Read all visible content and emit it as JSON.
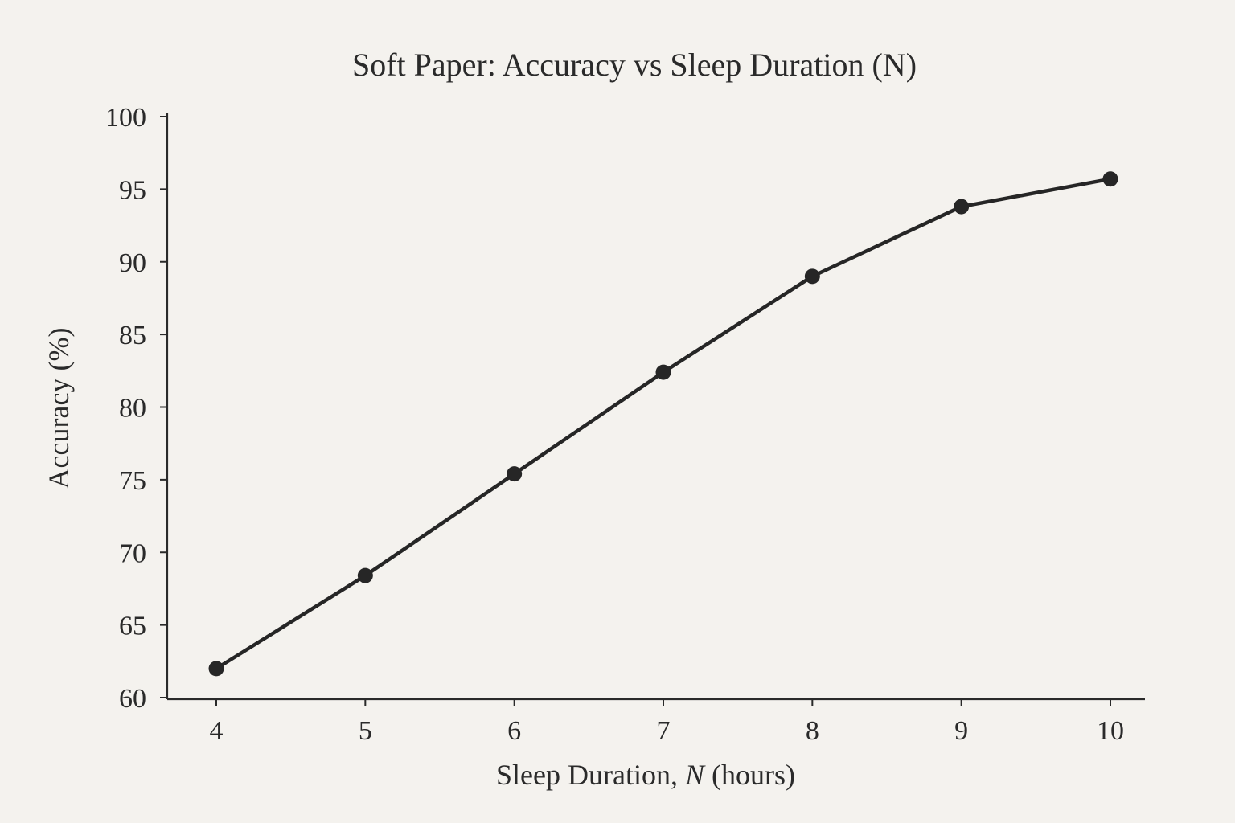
{
  "chart_data": {
    "type": "line",
    "title": "Soft Paper: Accuracy vs Sleep Duration (N)",
    "xlabel": {
      "prefix": "Sleep Duration, ",
      "variable": "N",
      "suffix": " (hours)"
    },
    "ylabel": "Accuracy (%)",
    "x": [
      4,
      5,
      6,
      7,
      8,
      9,
      10
    ],
    "x_ticks": [
      "4",
      "5",
      "6",
      "7",
      "8",
      "9",
      "10"
    ],
    "y_ticks": [
      "60",
      "65",
      "70",
      "75",
      "80",
      "85",
      "90",
      "95",
      "100"
    ],
    "ylim": [
      60,
      100
    ],
    "xlim": [
      3.67,
      10.23
    ],
    "grid": false,
    "legend": "none",
    "series": [
      {
        "values": [
          62.0,
          68.4,
          75.4,
          82.4,
          89.0,
          93.8,
          95.7
        ]
      }
    ],
    "colors": {
      "line": "#262626",
      "axes": "#2a2a2a",
      "background": "#f4f2ee"
    }
  }
}
